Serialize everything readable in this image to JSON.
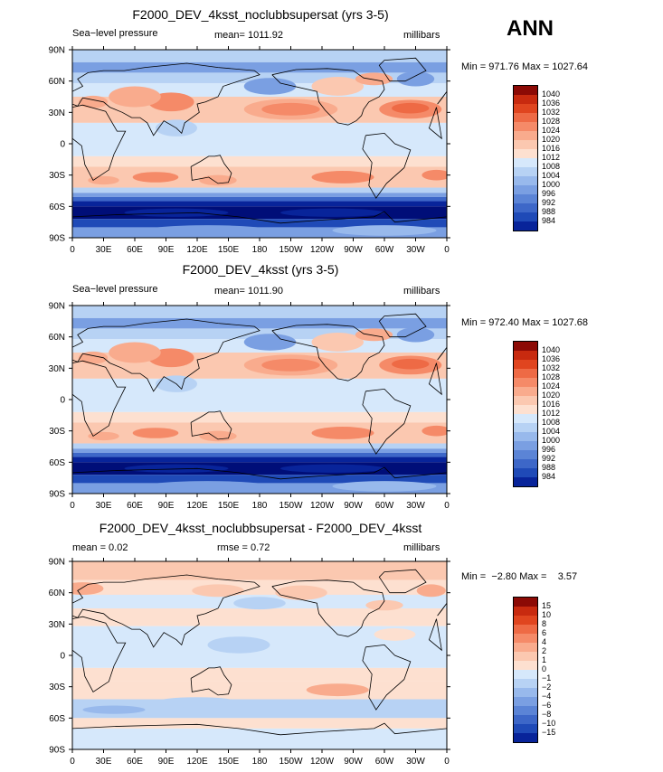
{
  "season": "ANN",
  "palette_pos": [
    "#fde0d0",
    "#fbc8b0",
    "#f9ab8d",
    "#f58a68",
    "#ee6a45",
    "#e0451f",
    "#c82a0f",
    "#8c0a05"
  ],
  "palette_neg": [
    "#d6e8fb",
    "#b7d2f4",
    "#98b9ec",
    "#7a9fe2",
    "#5b84d6",
    "#3d67c8",
    "#1f4ab7",
    "#08249a",
    "#000e78"
  ],
  "lat_labels": [
    "90N",
    "60N",
    "30N",
    "0",
    "30S",
    "60S",
    "90S"
  ],
  "lon_labels": [
    "0",
    "30E",
    "60E",
    "90E",
    "120E",
    "150E",
    "180",
    "150W",
    "120W",
    "90W",
    "60W",
    "30W",
    "0"
  ],
  "panels": [
    {
      "title": "F2000_DEV_4ksst_noclubbsupersat (yrs 3-5)",
      "left": "Sea−level pressure",
      "center": "mean= 1011.92",
      "right": "millibars",
      "minmax": "Min = 971.76 Max = 1027.64",
      "levels": [
        "1040",
        "1036",
        "1032",
        "1028",
        "1024",
        "1020",
        "1016",
        "1012",
        "1008",
        "1004",
        "1000",
        "996",
        "992",
        "988",
        "984"
      ]
    },
    {
      "title": "F2000_DEV_4ksst (yrs 3-5)",
      "left": "Sea−level pressure",
      "center": "mean= 1011.90",
      "right": "millibars",
      "minmax": "Min = 972.40 Max = 1027.68",
      "levels": [
        "1040",
        "1036",
        "1032",
        "1028",
        "1024",
        "1020",
        "1016",
        "1012",
        "1008",
        "1004",
        "1000",
        "996",
        "992",
        "988",
        "984"
      ]
    },
    {
      "title": "F2000_DEV_4ksst_noclubbsupersat - F2000_DEV_4ksst",
      "left": "mean =    0.02",
      "center": "rmse =    0.72",
      "right": "millibars",
      "minmax": "Min =  −2.80 Max =    3.57",
      "levels": [
        "15",
        "10",
        "8",
        "6",
        "4",
        "2",
        "1",
        "0",
        "−1",
        "−2",
        "−4",
        "−6",
        "−8",
        "−10",
        "−15"
      ]
    }
  ]
}
